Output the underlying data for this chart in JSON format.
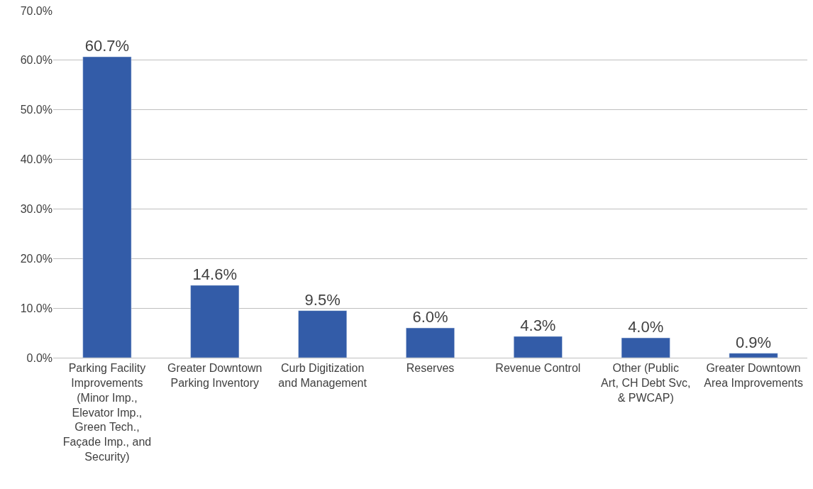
{
  "chart_data": {
    "type": "bar",
    "categories": [
      "Parking Facility Improvements (Minor Imp., Elevator Imp., Green Tech., Façade Imp., and Security)",
      "Greater Downtown Parking Inventory",
      "Curb Digitization and Management",
      "Reserves",
      "Revenue Control",
      "Other (Public Art, CH Debt Svc, & PWCAP)",
      "Greater Downtown Area Improvements"
    ],
    "values": [
      60.7,
      14.6,
      9.5,
      6.0,
      4.3,
      4.0,
      0.9
    ],
    "value_labels": [
      "60.7%",
      "14.6%",
      "9.5%",
      "6.0%",
      "4.3%",
      "4.0%",
      "0.9%"
    ],
    "color": "#335ca8",
    "ylim": [
      0,
      70
    ],
    "yticks": [
      {
        "value": 0,
        "label": "0.0%"
      },
      {
        "value": 10,
        "label": "10.0%"
      },
      {
        "value": 20,
        "label": "20.0%"
      },
      {
        "value": 30,
        "label": "30.0%"
      },
      {
        "value": 40,
        "label": "40.0%"
      },
      {
        "value": 50,
        "label": "50.0%"
      },
      {
        "value": 60,
        "label": "60.0%"
      },
      {
        "value": 70,
        "label": "70.0%"
      }
    ],
    "grid": "y",
    "legend": false
  }
}
